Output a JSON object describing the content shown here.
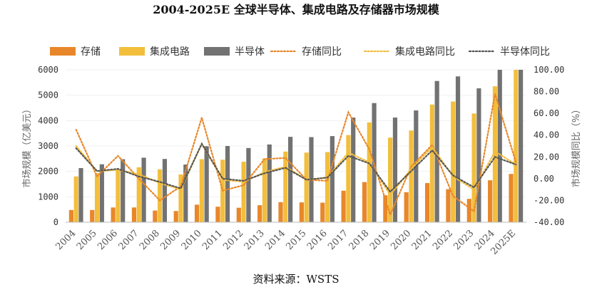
{
  "chart_data": {
    "type": "bar",
    "title": "2004-2025E 全球半导体、集成电路及存储器市场规模",
    "source": "资料来源：WSTS",
    "categories": [
      "2004",
      "2005",
      "2006",
      "2007",
      "2008",
      "2009",
      "2010",
      "2011",
      "2012",
      "2013",
      "2014",
      "2015",
      "2016",
      "2017",
      "2018",
      "2019",
      "2020",
      "2021",
      "2022",
      "2023",
      "2024",
      "2025E"
    ],
    "ylabel_left": "市场规模（亿美元）",
    "ylabel_right": "市场规模同比（%）",
    "ylim_left": [
      0,
      6000
    ],
    "yticks_left": [
      "0",
      "1000",
      "2000",
      "3000",
      "4000",
      "5000",
      "6000"
    ],
    "ylim_right": [
      -40,
      100
    ],
    "yticks_right": [
      "-40.00",
      "-20.00",
      "0.00",
      "20.00",
      "40.00",
      "60.00",
      "80.00",
      "100.00"
    ],
    "series": [
      {
        "name": "存储",
        "kind": "bar",
        "color": "#E8872A",
        "values": [
          480,
          480,
          580,
          580,
          460,
          440,
          690,
          610,
          570,
          670,
          790,
          780,
          770,
          1240,
          1580,
          1060,
          1180,
          1540,
          1300,
          920,
          1650,
          1900
        ]
      },
      {
        "name": "集成电路",
        "kind": "bar",
        "color": "#F2BE3C",
        "values": [
          1800,
          1930,
          2080,
          2160,
          2080,
          1880,
          2480,
          2460,
          2380,
          2510,
          2780,
          2740,
          2760,
          3430,
          3930,
          3330,
          3610,
          4630,
          4750,
          4280,
          5350,
          6050
        ]
      },
      {
        "name": "半导体",
        "kind": "bar",
        "color": "#727272",
        "values": [
          2130,
          2280,
          2480,
          2540,
          2490,
          2270,
          2990,
          3000,
          2920,
          3060,
          3360,
          3350,
          3390,
          4120,
          4690,
          4120,
          4400,
          5560,
          5740,
          5270,
          6050,
          6050
        ]
      },
      {
        "name": "存储同比",
        "kind": "line",
        "color": "#E8872A",
        "values": [
          45,
          2,
          21,
          0,
          -20,
          -7,
          56,
          -11,
          -6,
          18,
          19,
          -1,
          -2,
          61,
          27,
          -33,
          11,
          31,
          -16,
          -30,
          78,
          15
        ]
      },
      {
        "name": "集成电路同比",
        "kind": "line",
        "color": "#F2BE3C",
        "values": [
          30,
          7,
          8,
          4,
          -4,
          -10,
          32,
          -1,
          -3,
          6,
          11,
          -1,
          1,
          24,
          15,
          -15,
          9,
          29,
          2,
          -10,
          25,
          13
        ]
      },
      {
        "name": "半导体同比",
        "kind": "line",
        "color": "#555555",
        "values": [
          28,
          7,
          9,
          2,
          -3,
          -9,
          32,
          0,
          -2,
          5,
          10,
          -1,
          1,
          21,
          14,
          -12,
          7,
          26,
          3,
          -8,
          20,
          13
        ]
      }
    ]
  }
}
